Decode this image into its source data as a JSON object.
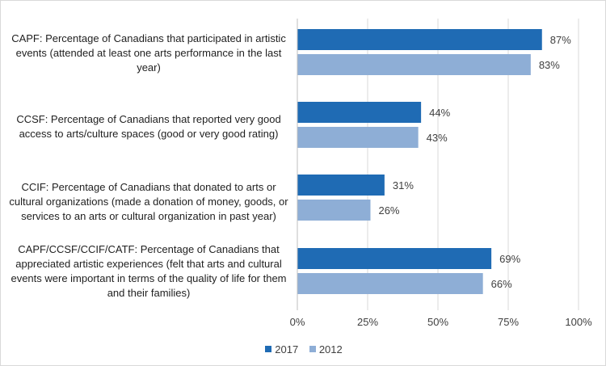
{
  "chart_data": {
    "type": "bar",
    "orientation": "horizontal",
    "title": "",
    "xlabel": "",
    "ylabel": "",
    "xlim": [
      0,
      100
    ],
    "ticks": [
      "0%",
      "25%",
      "50%",
      "75%",
      "100%"
    ],
    "tick_values": [
      0,
      25,
      50,
      75,
      100
    ],
    "categories": [
      "CAPF: Percentage of Canadians that participated in artistic events (attended at least one arts performance in the last year)",
      "CCSF: Percentage of Canadians that reported very good access to arts/culture spaces (good or very good rating)",
      "CCIF: Percentage of Canadians that donated to arts or cultural organizations (made a donation of money, goods, or services to an arts or cultural organization in past year)",
      "CAPF/CCSF/CCIF/CATF: Percentage of Canadians that appreciated artistic experiences (felt that arts and cultural events were important in terms of the quality of life for them and their families)"
    ],
    "series": [
      {
        "name": "2017",
        "color": "#1f6bb4",
        "values": [
          87,
          44,
          31,
          69
        ],
        "labels": [
          "87%",
          "44%",
          "31%",
          "69%"
        ]
      },
      {
        "name": "2012",
        "color": "#8eaed6",
        "values": [
          83,
          43,
          26,
          66
        ],
        "labels": [
          "83%",
          "43%",
          "26%",
          "66%"
        ]
      }
    ],
    "legend_position": "bottom",
    "grid": true
  }
}
